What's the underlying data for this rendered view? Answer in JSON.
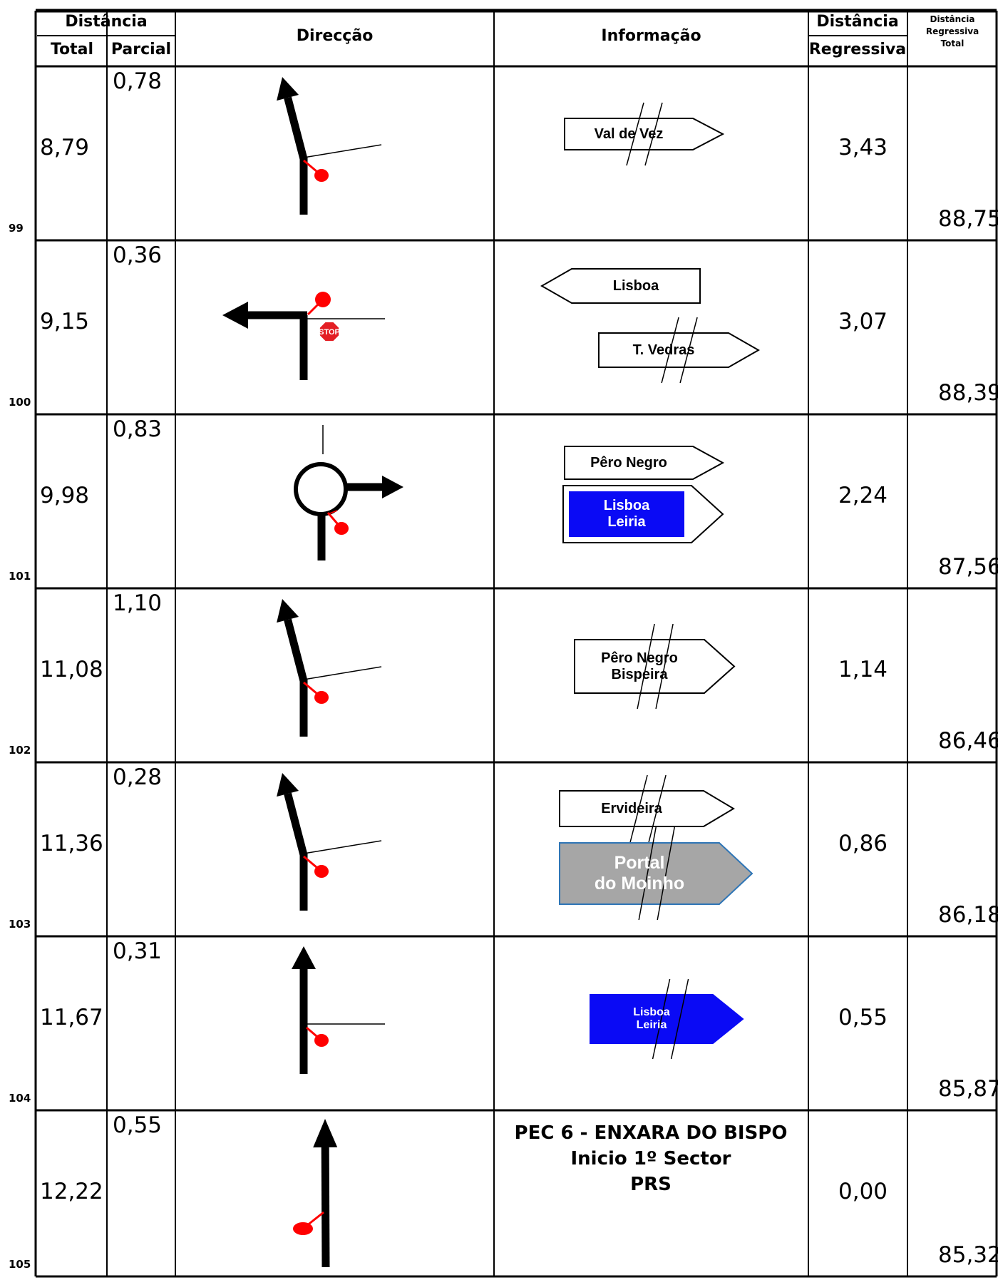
{
  "header": {
    "distancia": "Distância",
    "total": "Total",
    "parcial": "Parcial",
    "direccao": "Direcção",
    "informacao": "Informação",
    "distancia_reg": "Distância",
    "regressiva": "Regressiva",
    "drt_line1": "Distância",
    "drt_line2": "Regressiva",
    "drt_line3": "Total"
  },
  "rows": [
    {
      "num": "99",
      "total": "8,79",
      "parcial": "0,78",
      "regressiva": "3,43",
      "reg_total": "88,75",
      "direction": "left-fork",
      "signs": [
        {
          "text": [
            "Val de Vez"
          ],
          "style": "white-right",
          "crossed": true
        }
      ]
    },
    {
      "num": "100",
      "total": "9,15",
      "parcial": "0,36",
      "regressiva": "3,07",
      "reg_total": "88,39",
      "direction": "turn-left-stop",
      "stop_text": "STOP",
      "signs": [
        {
          "text": [
            "Lisboa"
          ],
          "style": "white-left",
          "crossed": false
        },
        {
          "text": [
            "T. Vedras"
          ],
          "style": "white-right",
          "crossed": true
        }
      ]
    },
    {
      "num": "101",
      "total": "9,98",
      "parcial": "0,83",
      "regressiva": "2,24",
      "reg_total": "87,56",
      "direction": "roundabout-right",
      "signs": [
        {
          "text": [
            "Pêro Negro"
          ],
          "style": "white-right",
          "crossed": false
        },
        {
          "text": [
            "Lisboa",
            "Leiria"
          ],
          "style": "blue-framed",
          "crossed": false
        }
      ]
    },
    {
      "num": "102",
      "total": "11,08",
      "parcial": "1,10",
      "regressiva": "1,14",
      "reg_total": "86,46",
      "direction": "left-fork",
      "signs": [
        {
          "text": [
            "Pêro Negro",
            "Bispeira"
          ],
          "style": "white-right",
          "crossed": true
        }
      ]
    },
    {
      "num": "103",
      "total": "11,36",
      "parcial": "0,28",
      "regressiva": "0,86",
      "reg_total": "86,18",
      "direction": "left-fork",
      "signs": [
        {
          "text": [
            "Ervideira"
          ],
          "style": "white-right",
          "crossed": true
        },
        {
          "text": [
            "Portal",
            "do Moinho"
          ],
          "style": "grey",
          "crossed": true
        }
      ]
    },
    {
      "num": "104",
      "total": "11,67",
      "parcial": "0,31",
      "regressiva": "0,55",
      "reg_total": "85,87",
      "direction": "straight-right-road",
      "signs": [
        {
          "text": [
            "Lisboa",
            "Leiria"
          ],
          "style": "blue",
          "crossed": true
        }
      ]
    },
    {
      "num": "105",
      "total": "12,22",
      "parcial": "0,55",
      "regressiva": "0,00",
      "reg_total": "85,32",
      "direction": "straight-left-dot",
      "info_text": [
        "PEC 6 - ENXARA DO BISPO",
        "Inicio 1º Sector",
        "PRS"
      ],
      "signs": []
    }
  ],
  "colors": {
    "blue": "#0a0af5",
    "grey": "#a6a6a6",
    "red": "#ff0000",
    "grey_border": "#2e75b6"
  }
}
